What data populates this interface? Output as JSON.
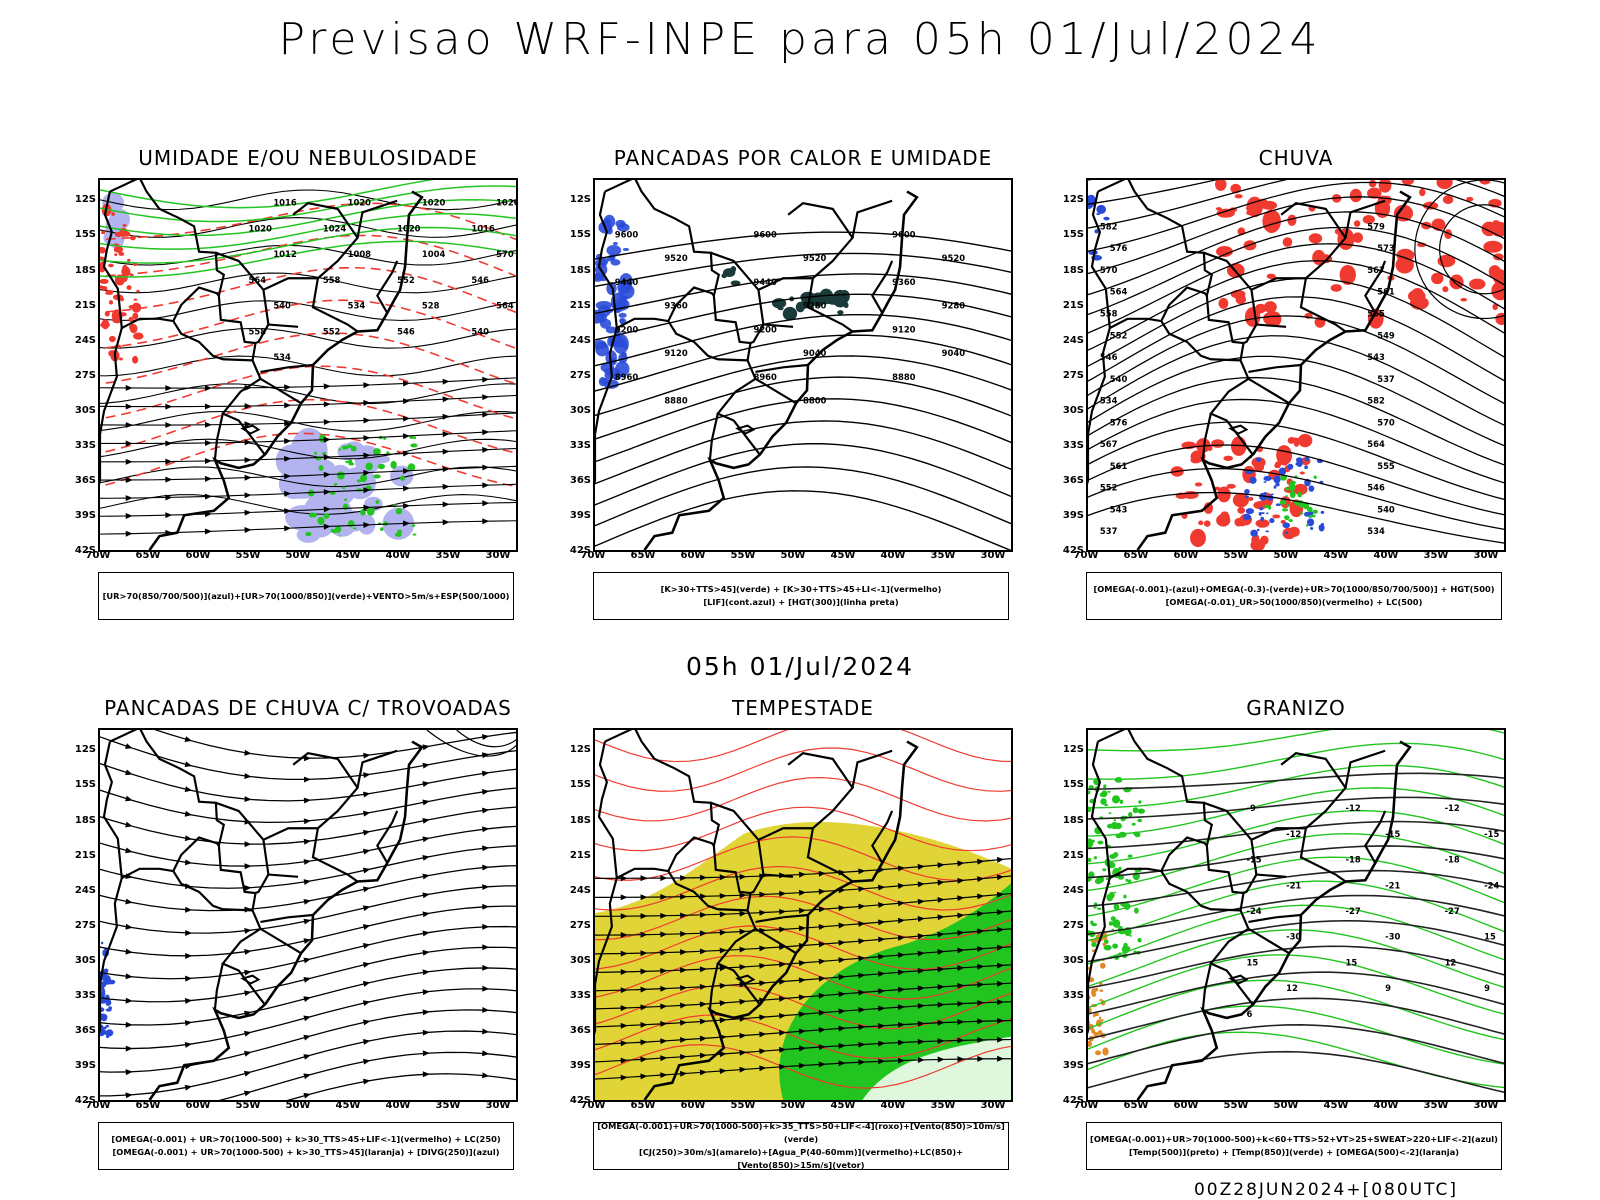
{
  "header": {
    "title": "Previsao WRF-INPE  para 05h 01/Jul/2024",
    "mid_title": "05h 01/Jul/2024",
    "footer": "00Z28JUN2024+[080UTC]"
  },
  "axes": {
    "lat_labels": [
      "12S",
      "15S",
      "18S",
      "21S",
      "24S",
      "27S",
      "30S",
      "33S",
      "36S",
      "39S",
      "42S"
    ],
    "lon_labels": [
      "70W",
      "65W",
      "60W",
      "55W",
      "50W",
      "45W",
      "40W",
      "35W",
      "30W"
    ]
  },
  "colors": {
    "blue": "#2a4bd8",
    "green": "#22c51f",
    "red": "#f03a30",
    "lavender": "#b3b3f0",
    "yellow": "#e1d436",
    "dark_teal": "#1b3a3a",
    "orange": "#e08a2a"
  },
  "panels": [
    {
      "id": "umidade",
      "title": "UMIDADE E/OU NEBULOSIDADE",
      "legend": [
        "[UR>70(850/700/500)](azul)+[UR>70(1000/850)](verde)+VENTO>5m/s+ESP(500/1000)"
      ],
      "contour_labels": [
        "1012",
        "1016",
        "1016",
        "1016",
        "1016",
        "1020",
        "1020",
        "1020",
        "1020",
        "1024",
        "1020",
        "1016",
        "1012",
        "1008",
        "1004",
        "570",
        "564",
        "558",
        "552",
        "546",
        "540",
        "534",
        "528",
        "564",
        "558",
        "552",
        "546",
        "540",
        "534"
      ]
    },
    {
      "id": "pancadas-calor",
      "title": "PANCADAS POR CALOR E UMIDADE",
      "legend": [
        "[K>30+TTS>45](verde) + [K>30+TTS>45+LI<-1](vermelho)",
        "[LIF](cont.azul) + [HGT(300)](linha preta)"
      ],
      "contour_labels": [
        "9600",
        "9600",
        "9600",
        "9520",
        "9520",
        "9520",
        "9440",
        "9440",
        "9360",
        "9360",
        "9280",
        "9280",
        "9200",
        "9200",
        "9120",
        "9120",
        "9040",
        "9040",
        "8960",
        "8960",
        "8880",
        "8880",
        "8800"
      ]
    },
    {
      "id": "chuva",
      "title": "CHUVA",
      "legend": [
        "[OMEGA(-0.001)-(azul)+OMEGA(-0.3)-(verde)+UR>70(1000/850/700/500)] + HGT(500)",
        "[OMEGA(-0.01)_UR>50(1000/850)(vermelho) + LC(500)"
      ],
      "contour_labels": [
        "582",
        "579",
        "576",
        "573",
        "570",
        "567",
        "564",
        "561",
        "558",
        "555",
        "552",
        "549",
        "546",
        "543",
        "540",
        "537",
        "534",
        "582",
        "576",
        "570",
        "567",
        "564",
        "561",
        "555",
        "552",
        "546",
        "543",
        "540",
        "537",
        "534"
      ]
    },
    {
      "id": "trovoadas",
      "title": "PANCADAS DE CHUVA C/ TROVOADAS",
      "legend": [
        "[OMEGA(-0.001) + UR>70(1000-500) + k>30_TTS>45+LIF<-1](vermelho) + LC(250)",
        "[OMEGA(-0.001) + UR>70(1000-500) + k>30_TTS>45](laranja) + [DIVG(250)](azul)"
      ],
      "contour_labels": []
    },
    {
      "id": "tempestade",
      "title": "TEMPESTADE",
      "legend": [
        "[OMEGA(-0.001)+UR>70(1000-500)+k>35_TTS>50+LIF<-4](roxo)+[Vento(850)>10m/s](verde)",
        "[CJ(250)>30m/s](amarelo)+[Agua_P(40-60mm)](vermelho)+LC(850)+[Vento(850)>15m/s](vetor)"
      ],
      "contour_labels": []
    },
    {
      "id": "granizo",
      "title": "GRANIZO",
      "legend": [
        "[OMEGA(-0.001)+UR>70(1000-500)+k<60+TTS>52+VT>25+SWEAT>220+LIF<-2](azul)",
        "[Temp(500)](preto) + [Temp(850)](verde) + [OMEGA(500)<-2](laranja)"
      ],
      "contour_labels": [
        "-9",
        "-12",
        "-12",
        "-12",
        "-15",
        "-15",
        "-15",
        "-18",
        "-18",
        "-21",
        "-21",
        "-24",
        "-24",
        "-27",
        "-27",
        "-30",
        "-30",
        "15",
        "15",
        "15",
        "12",
        "12",
        "9",
        "9",
        "6"
      ]
    }
  ]
}
